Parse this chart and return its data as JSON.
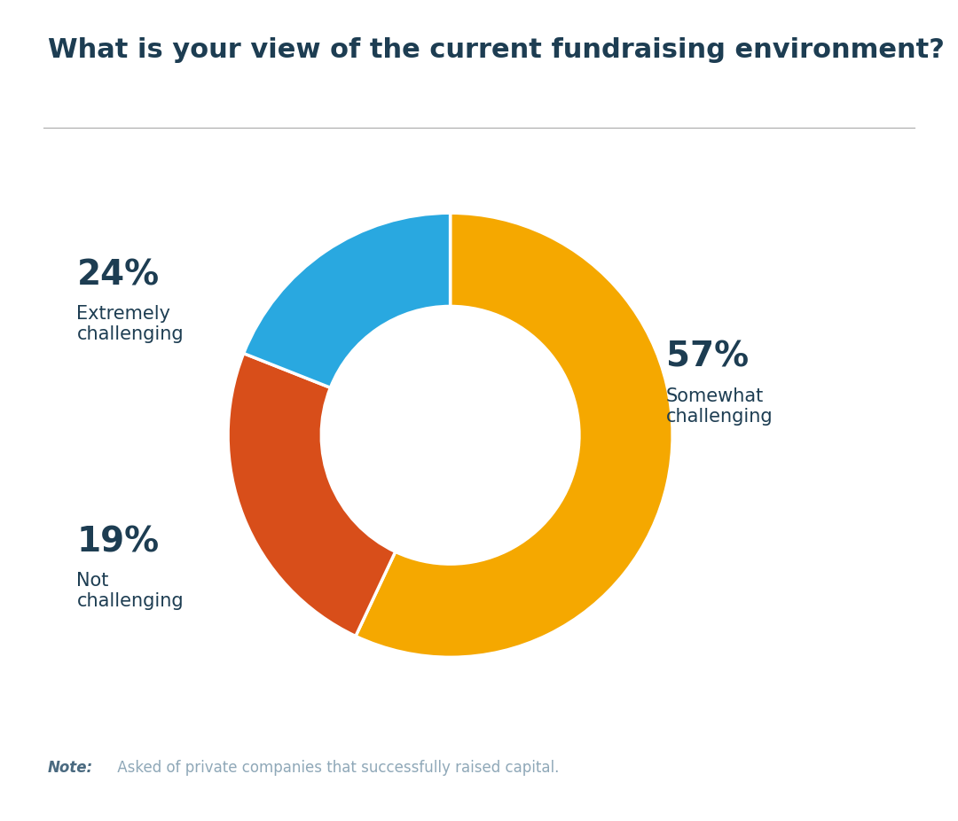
{
  "title": "What is your view of the current fundraising environment?",
  "title_color": "#1d3d52",
  "title_fontsize": 22,
  "title_fontweight": "bold",
  "slices": [
    57,
    24,
    19
  ],
  "labels": [
    "Somewhat\nchallenging",
    "Extremely\nchallenging",
    "Not\nchallenging"
  ],
  "percentages": [
    "57%",
    "24%",
    "19%"
  ],
  "colors": [
    "#F5A800",
    "#D84E1A",
    "#29A8E0"
  ],
  "start_angle": 90,
  "note_bold": "Note:",
  "note_text": " Asked of private companies that successfully raised capital.",
  "note_color": "#8fa8b8",
  "note_bold_color": "#4a6a80",
  "line_color": "#aaaaaa",
  "background_color": "#ffffff",
  "label_color": "#1d3d52",
  "pct_fontsize": 28,
  "label_fontsize": 15
}
